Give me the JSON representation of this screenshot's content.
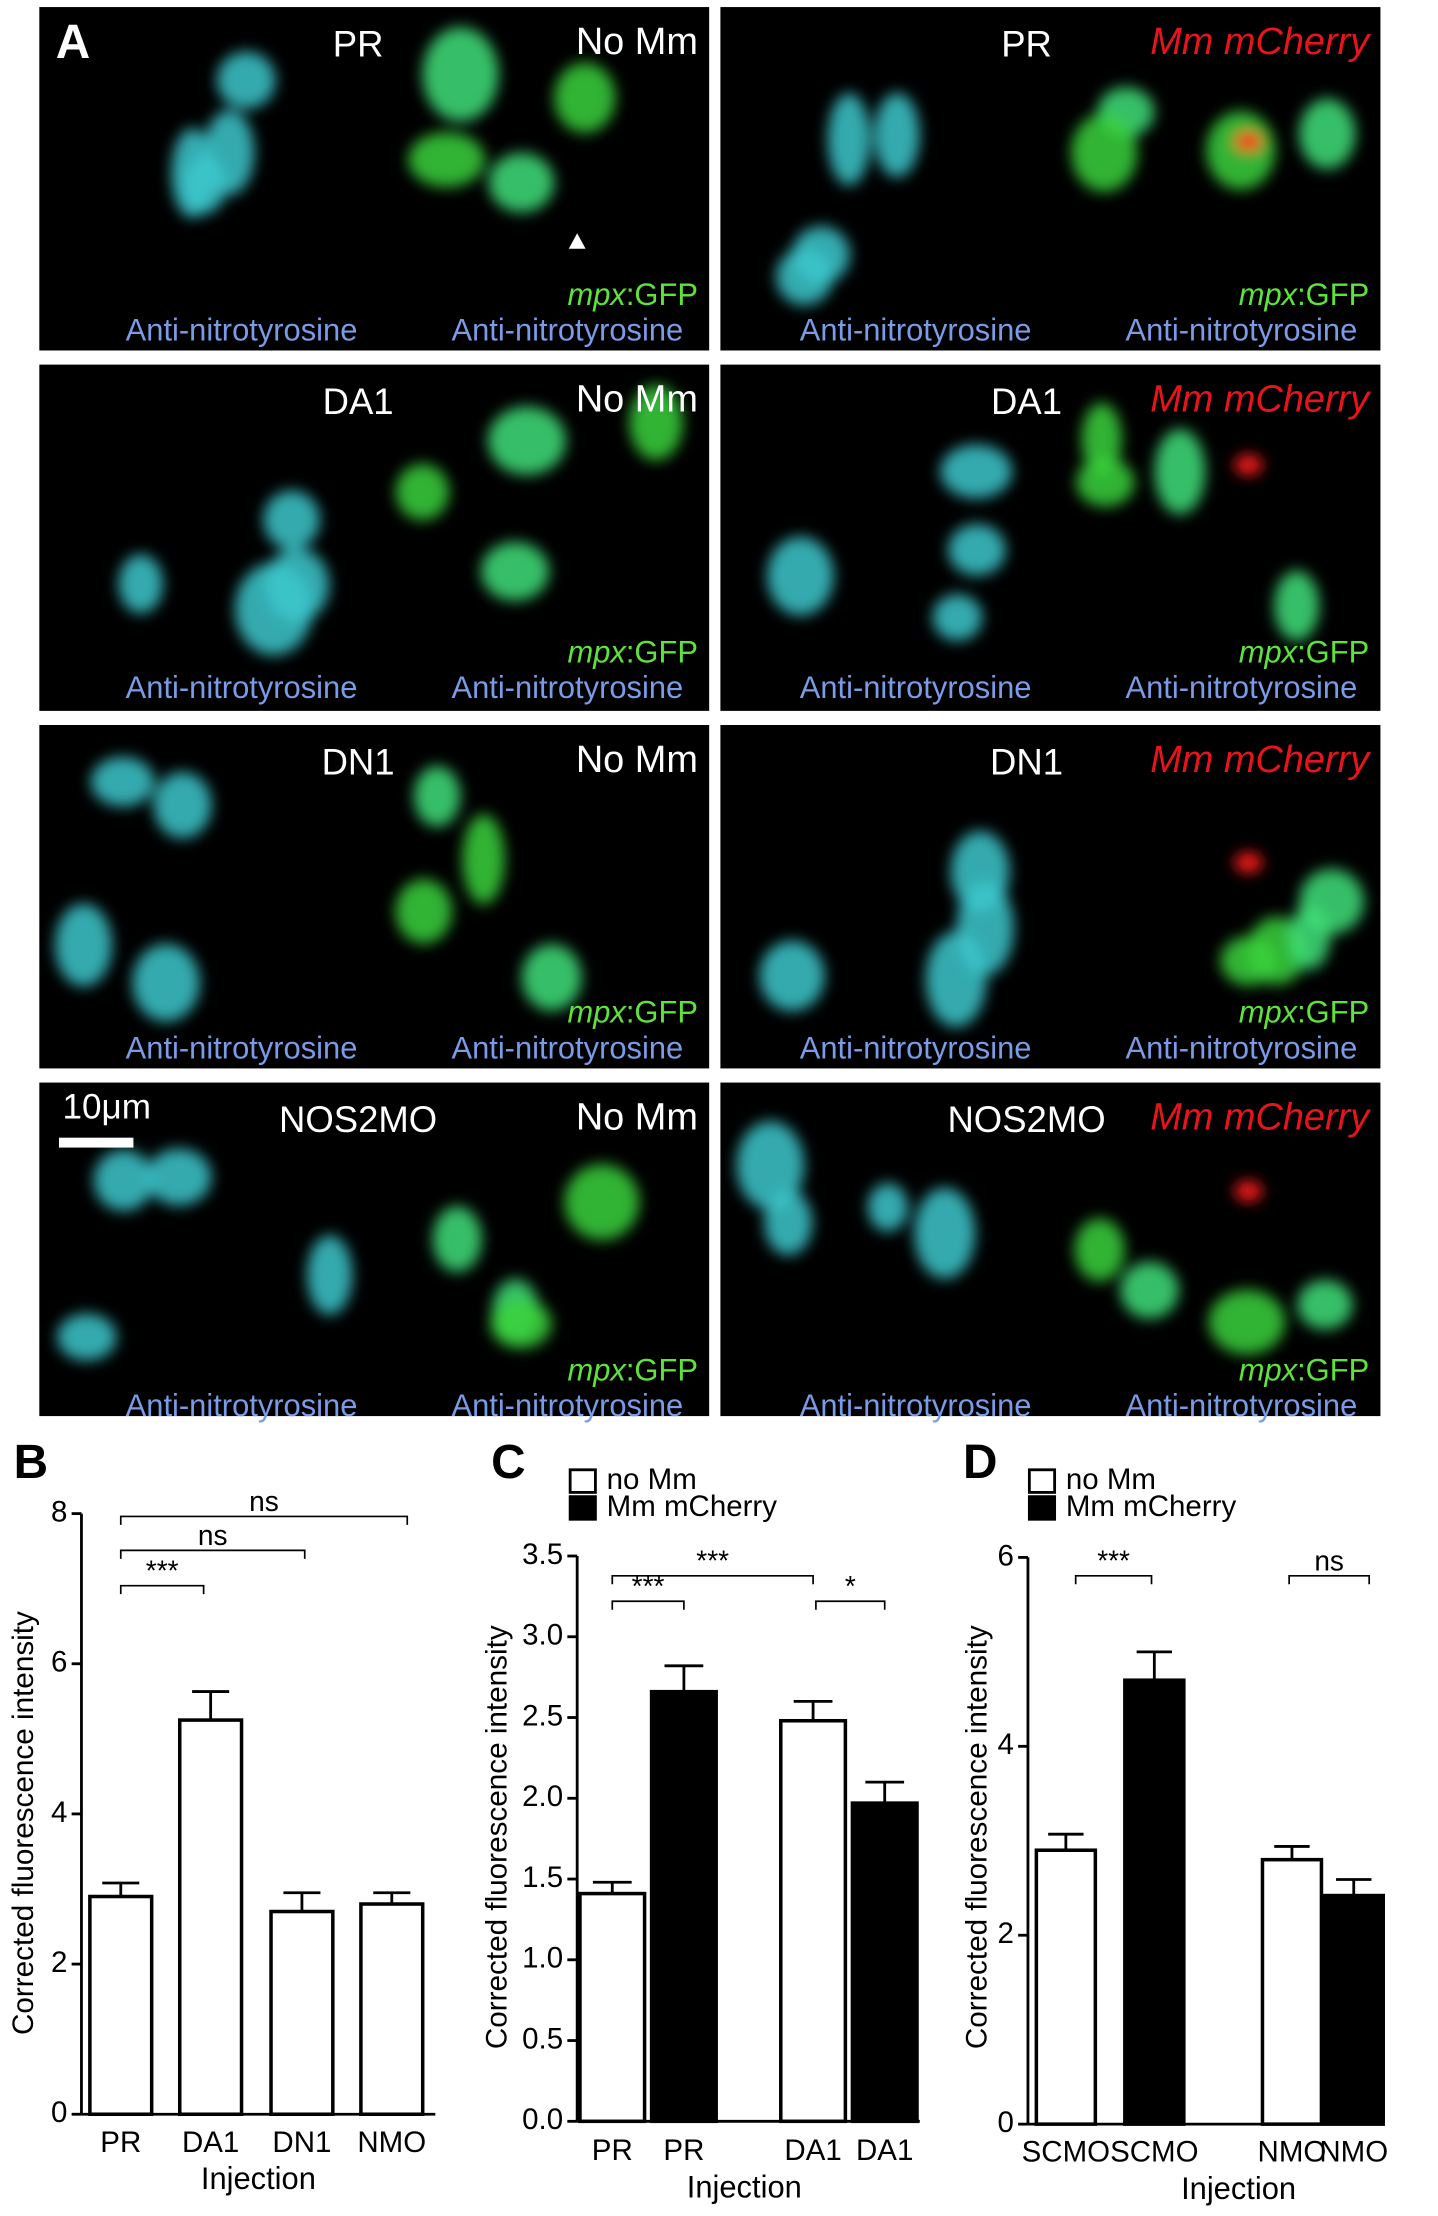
{
  "panel_a": {
    "label": "A",
    "scale_bar": "10μm",
    "panels": [
      {
        "condition": "PR",
        "infection": "No Mm",
        "reporter": [
          "mpx",
          ":GFP"
        ],
        "stains": [
          "Anti-nitrotyrosine",
          "Anti-nitrotyrosine"
        ]
      },
      {
        "condition": "PR",
        "infection": "Mm mCherry",
        "reporter": [
          "mpx",
          ":GFP"
        ],
        "stains": [
          "Anti-nitrotyrosine",
          "Anti-nitrotyrosine"
        ]
      },
      {
        "condition": "DA1",
        "infection": "No Mm",
        "reporter": [
          "mpx",
          ":GFP"
        ],
        "stains": [
          "Anti-nitrotyrosine",
          "Anti-nitrotyrosine"
        ]
      },
      {
        "condition": "DA1",
        "infection": "Mm mCherry",
        "reporter": [
          "mpx",
          ":GFP"
        ],
        "stains": [
          "Anti-nitrotyrosine",
          "Anti-nitrotyrosine"
        ]
      },
      {
        "condition": "DN1",
        "infection": "No Mm",
        "reporter": [
          "mpx",
          ":GFP"
        ],
        "stains": [
          "Anti-nitrotyrosine",
          "Anti-nitrotyrosine"
        ]
      },
      {
        "condition": "DN1",
        "infection": "Mm mCherry",
        "reporter": [
          "mpx",
          ":GFP"
        ],
        "stains": [
          "Anti-nitrotyrosine",
          "Anti-nitrotyrosine"
        ]
      },
      {
        "condition": "NOS2MO",
        "infection": "No Mm",
        "reporter": [
          "mpx",
          ":GFP"
        ],
        "stains": [
          "Anti-nitrotyrosine",
          "Anti-nitrotyrosine"
        ]
      },
      {
        "condition": "NOS2MO",
        "infection": "Mm mCherry",
        "reporter": [
          "mpx",
          ":GFP"
        ],
        "stains": [
          "Anti-nitrotyrosine",
          "Anti-nitrotyrosine"
        ]
      }
    ]
  },
  "chart_data": [
    {
      "type": "bar",
      "panel_label": "B",
      "x_label": "Injection",
      "y_label": "Corrected fluorescence intensity",
      "categories": [
        "PR",
        "DA1",
        "DN1",
        "NMO"
      ],
      "values": [
        2.9,
        5.25,
        2.7,
        2.8
      ],
      "errors": [
        0.18,
        0.38,
        0.25,
        0.15
      ],
      "color": "#ffffff",
      "ylim": [
        0,
        8
      ],
      "yticks": [
        0,
        2,
        4,
        6,
        8
      ],
      "annotations": [
        "***",
        "ns",
        "ns"
      ]
    },
    {
      "type": "bar",
      "panel_label": "C",
      "x_label": "Injection",
      "y_label": "Corrected fluorescence intensity",
      "categories": [
        "PR",
        "DA1"
      ],
      "series": [
        {
          "name": "no Mm",
          "color": "#ffffff",
          "values": [
            1.41,
            2.48
          ],
          "errors": [
            0.07,
            0.12
          ]
        },
        {
          "name": "Mm mCherry",
          "color": "#000000",
          "values": [
            2.66,
            1.97
          ],
          "errors": [
            0.16,
            0.13
          ]
        }
      ],
      "ylim": [
        0,
        3.5
      ],
      "yticks": [
        {
          "value": 0,
          "label": "0.0"
        },
        0.5,
        {
          "value": 1,
          "label": "1.0"
        },
        1.5,
        {
          "value": 2,
          "label": "2.0"
        },
        2.5,
        {
          "value": 3,
          "label": "3.0"
        },
        3.5
      ],
      "annotations": [
        "***",
        "***",
        "*"
      ]
    },
    {
      "type": "bar",
      "panel_label": "D",
      "x_label": "Injection",
      "y_label": "Corrected fluorescence intensity",
      "categories": [
        "SCMO",
        "NMO"
      ],
      "series": [
        {
          "name": "no Mm",
          "color": "#ffffff",
          "values": [
            2.9,
            2.8
          ],
          "errors": [
            0.17,
            0.14
          ]
        },
        {
          "name": "Mm mCherry",
          "color": "#000000",
          "values": [
            4.7,
            2.42
          ],
          "errors": [
            0.3,
            0.17
          ]
        }
      ],
      "ylim": [
        0,
        6
      ],
      "yticks": [
        0,
        2,
        4,
        6
      ],
      "annotations": [
        "***",
        "ns"
      ]
    }
  ]
}
